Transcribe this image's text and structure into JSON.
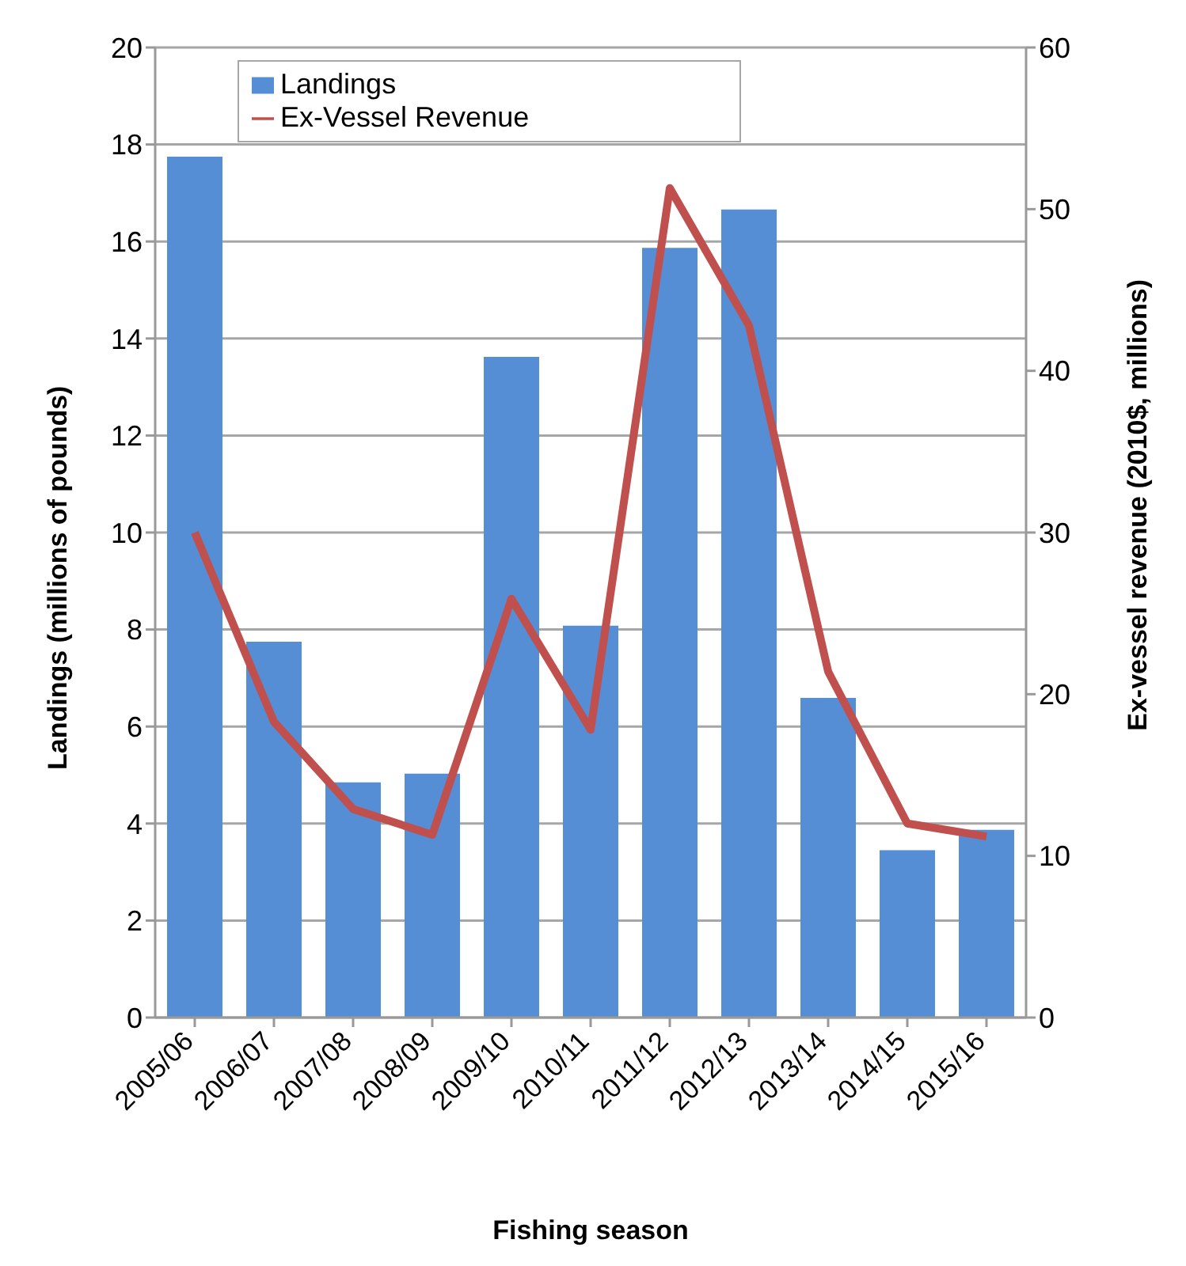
{
  "chart_data": {
    "type": "bar",
    "xlabel": "Fishing season",
    "ylabel": "Landings (millions of pounds)",
    "y2label": "Ex-vessel revenue (2010$, millions)",
    "categories": [
      "2005/06",
      "2006/07",
      "2007/08",
      "2008/09",
      "2009/10",
      "2010/11",
      "2011/12",
      "2012/13",
      "2013/14",
      "2014/15",
      "2015/16"
    ],
    "series": [
      {
        "name": "Landings",
        "color": "#558ed5",
        "values": [
          17.75,
          7.75,
          4.85,
          5.03,
          13.62,
          8.08,
          15.87,
          16.66,
          6.59,
          3.45,
          3.87
        ]
      },
      {
        "name": "Ex-Vessel Revenue",
        "type": "line",
        "axis": "y2",
        "color": "#c0504d",
        "values": [
          30.0,
          18.3,
          12.9,
          11.3,
          25.9,
          17.8,
          51.3,
          42.8,
          21.4,
          12.0,
          11.2
        ]
      }
    ],
    "ylim": [
      0,
      20
    ],
    "yticks": [
      0,
      2,
      4,
      6,
      8,
      10,
      12,
      14,
      16,
      18,
      20
    ],
    "y2lim": [
      0,
      60
    ],
    "y2ticks": [
      0,
      10,
      20,
      30,
      40,
      50,
      60
    ],
    "grid": "y",
    "legend": "top",
    "marker": "none",
    "line_style": "solid"
  }
}
